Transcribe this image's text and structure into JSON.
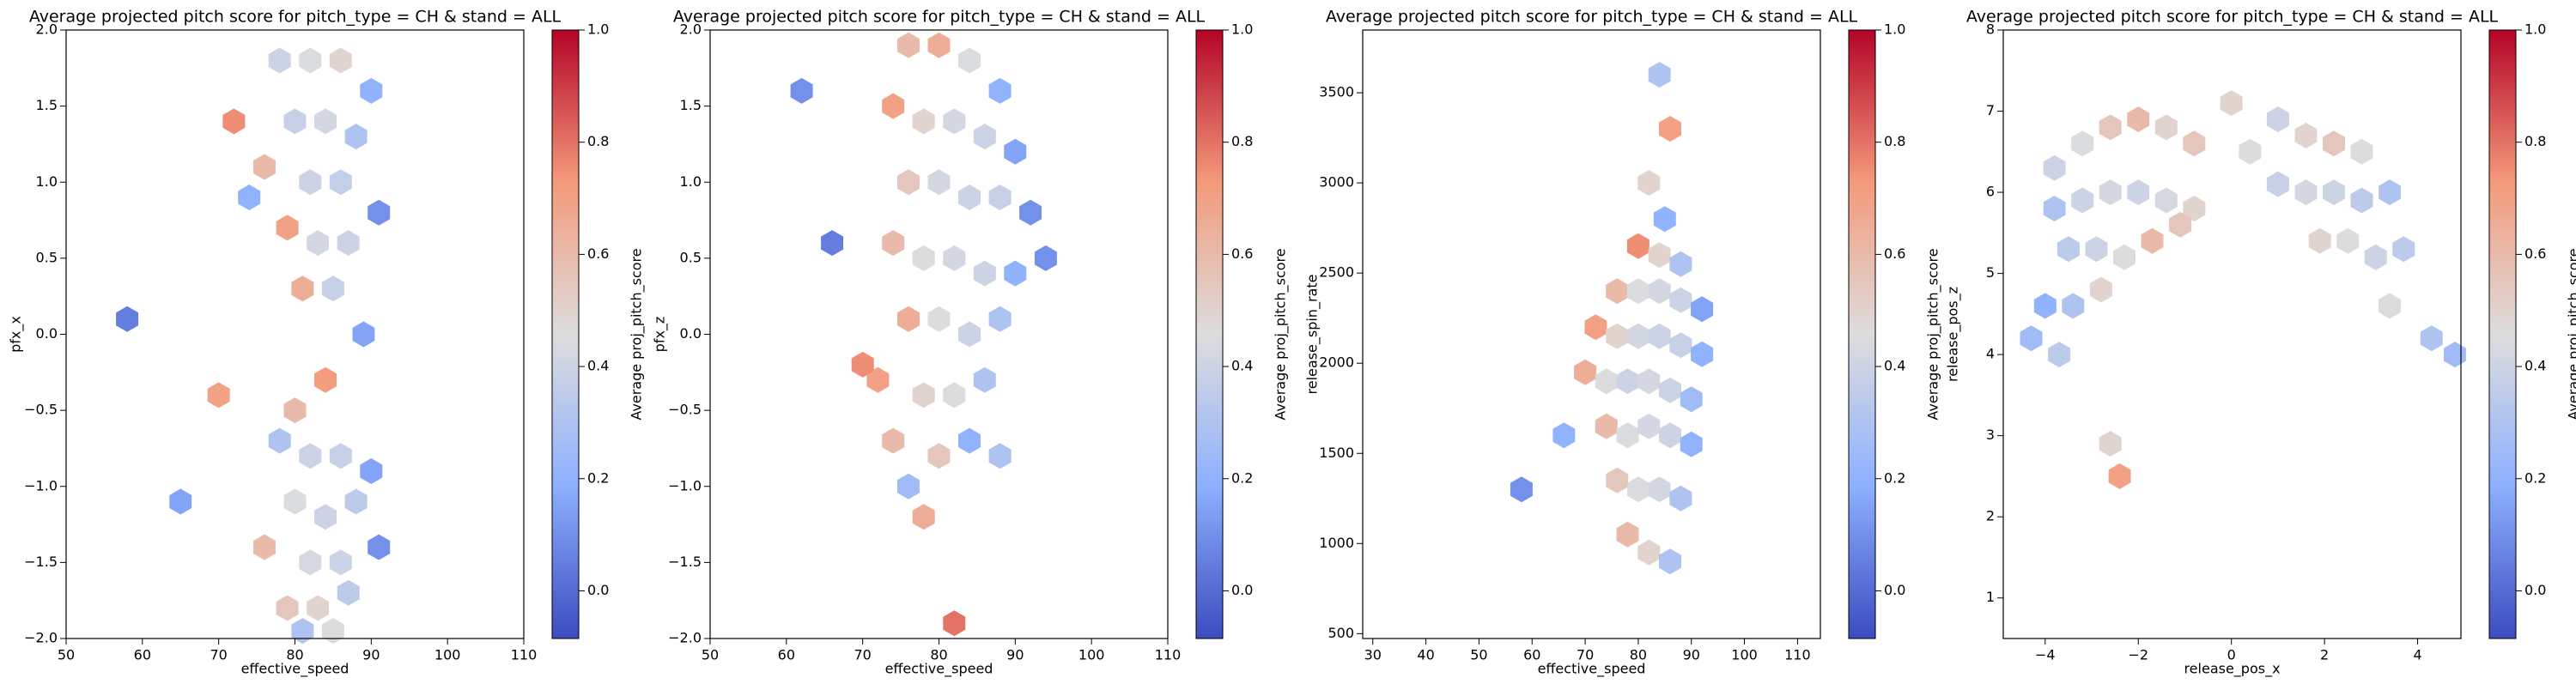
{
  "chart_data": [
    {
      "type": "hexbin",
      "title": "Average projected pitch score for pitch_type = CH & stand = ALL",
      "xlabel": "effective_speed",
      "ylabel": "pfx_x",
      "x": [
        78,
        82,
        86,
        90,
        80,
        84,
        88,
        76,
        82,
        86,
        79,
        83,
        87,
        91,
        81,
        85,
        74,
        89,
        84,
        80,
        78,
        82,
        86,
        90,
        80,
        84,
        88,
        76,
        82,
        86,
        79,
        83,
        87,
        91,
        81,
        85,
        65,
        58,
        70,
        72
      ],
      "y": [
        1.8,
        1.8,
        1.8,
        1.6,
        1.4,
        1.4,
        1.3,
        1.1,
        1.0,
        1.0,
        0.7,
        0.6,
        0.6,
        0.8,
        0.3,
        0.3,
        0.9,
        0.0,
        -0.3,
        -0.5,
        -0.7,
        -0.8,
        -0.8,
        -0.9,
        -1.1,
        -1.2,
        -1.1,
        -1.4,
        -1.5,
        -1.5,
        -1.8,
        -1.8,
        -1.7,
        -1.4,
        -1.95,
        -1.95,
        -1.1,
        0.1,
        -0.4,
        1.4
      ],
      "values": [
        0.4,
        0.45,
        0.5,
        0.2,
        0.38,
        0.42,
        0.3,
        0.6,
        0.4,
        0.37,
        0.7,
        0.42,
        0.4,
        0.1,
        0.65,
        0.38,
        0.2,
        0.15,
        0.72,
        0.6,
        0.3,
        0.4,
        0.38,
        0.15,
        0.45,
        0.4,
        0.35,
        0.6,
        0.43,
        0.4,
        0.55,
        0.5,
        0.35,
        0.1,
        0.3,
        0.45,
        0.15,
        0.05,
        0.7,
        0.75
      ],
      "xlim": [
        50,
        110
      ],
      "xticks": [
        50,
        60,
        70,
        80,
        90,
        100,
        110
      ],
      "ylim": [
        -2,
        2
      ],
      "yticks": [
        {
          "value": -2,
          "label": "−2.0"
        },
        {
          "value": -1.5,
          "label": "−1.5"
        },
        {
          "value": -1,
          "label": "−1.0"
        },
        {
          "value": -0.5,
          "label": "−0.5"
        },
        {
          "value": 0,
          "label": "0.0"
        },
        0.5,
        {
          "value": 1,
          "label": "1.0"
        },
        1.5,
        {
          "value": 2,
          "label": "2.0"
        }
      ],
      "colorbar": {
        "label": "Average proj_pitch_score",
        "colormap": "coolwarm",
        "lim": [
          -0.085,
          1
        ],
        "ticks": [
          {
            "value": 0,
            "label": "0.0"
          },
          0.2,
          0.4,
          0.6,
          0.8,
          {
            "value": 1,
            "label": "1.0"
          }
        ]
      }
    },
    {
      "type": "hexbin",
      "title": "Average projected pitch score for pitch_type = CH & stand = ALL",
      "xlabel": "effective_speed",
      "ylabel": "pfx_z",
      "x": [
        76,
        80,
        84,
        88,
        74,
        78,
        82,
        86,
        90,
        76,
        80,
        84,
        88,
        92,
        74,
        78,
        82,
        86,
        90,
        76,
        80,
        84,
        88,
        72,
        78,
        82,
        86,
        74,
        80,
        84,
        70,
        62,
        66,
        78,
        82,
        94,
        76,
        88
      ],
      "y": [
        1.9,
        1.9,
        1.8,
        1.6,
        1.5,
        1.4,
        1.4,
        1.3,
        1.2,
        1.0,
        1.0,
        0.9,
        0.9,
        0.8,
        0.6,
        0.5,
        0.5,
        0.4,
        0.4,
        0.1,
        0.1,
        0.0,
        0.1,
        -0.3,
        -0.4,
        -0.4,
        -0.3,
        -0.7,
        -0.8,
        -0.7,
        -0.2,
        1.6,
        0.6,
        -1.2,
        -1.9,
        0.5,
        -1.0,
        -0.8
      ],
      "values": [
        0.6,
        0.65,
        0.45,
        0.2,
        0.7,
        0.5,
        0.42,
        0.4,
        0.15,
        0.55,
        0.42,
        0.4,
        0.38,
        0.1,
        0.6,
        0.45,
        0.42,
        0.4,
        0.2,
        0.65,
        0.45,
        0.4,
        0.3,
        0.7,
        0.5,
        0.45,
        0.3,
        0.6,
        0.55,
        0.2,
        0.75,
        0.1,
        0.05,
        0.65,
        0.8,
        0.1,
        0.25,
        0.3
      ],
      "xlim": [
        50,
        110
      ],
      "xticks": [
        50,
        60,
        70,
        80,
        90,
        100,
        110
      ],
      "ylim": [
        -2,
        2
      ],
      "yticks": [
        {
          "value": -2,
          "label": "−2.0"
        },
        {
          "value": -1.5,
          "label": "−1.5"
        },
        {
          "value": -1,
          "label": "−1.0"
        },
        {
          "value": -0.5,
          "label": "−0.5"
        },
        {
          "value": 0,
          "label": "0.0"
        },
        0.5,
        {
          "value": 1,
          "label": "1.0"
        },
        1.5,
        {
          "value": 2,
          "label": "2.0"
        }
      ],
      "colorbar": {
        "label": "Average proj_pitch_score",
        "colormap": "coolwarm",
        "lim": [
          -0.085,
          1
        ],
        "ticks": [
          {
            "value": 0,
            "label": "0.0"
          },
          0.2,
          0.4,
          0.6,
          0.8,
          {
            "value": 1,
            "label": "1.0"
          }
        ]
      }
    },
    {
      "type": "hexbin",
      "title": "Average projected pitch score for pitch_type = CH & stand = ALL",
      "xlabel": "effective_speed",
      "ylabel": "release_spin_rate",
      "x": [
        84,
        86,
        82,
        85,
        80,
        84,
        88,
        76,
        80,
        84,
        88,
        92,
        72,
        76,
        80,
        84,
        88,
        92,
        70,
        74,
        78,
        82,
        86,
        90,
        74,
        78,
        82,
        86,
        90,
        76,
        80,
        84,
        88,
        78,
        82,
        86,
        58,
        66
      ],
      "y": [
        3600,
        3300,
        3000,
        2800,
        2650,
        2600,
        2550,
        2400,
        2400,
        2400,
        2350,
        2300,
        2200,
        2150,
        2150,
        2150,
        2100,
        2050,
        1950,
        1900,
        1900,
        1900,
        1850,
        1800,
        1650,
        1600,
        1650,
        1600,
        1550,
        1350,
        1300,
        1300,
        1250,
        1050,
        950,
        900,
        1300,
        1600
      ],
      "values": [
        0.3,
        0.7,
        0.5,
        0.2,
        0.75,
        0.5,
        0.3,
        0.6,
        0.45,
        0.42,
        0.4,
        0.15,
        0.7,
        0.5,
        0.42,
        0.4,
        0.38,
        0.2,
        0.65,
        0.45,
        0.4,
        0.42,
        0.4,
        0.25,
        0.6,
        0.45,
        0.42,
        0.4,
        0.2,
        0.55,
        0.45,
        0.42,
        0.3,
        0.6,
        0.5,
        0.3,
        0.1,
        0.2
      ],
      "xlim": [
        28.1,
        114.3
      ],
      "xticks": [
        30,
        40,
        50,
        60,
        70,
        80,
        90,
        100,
        110
      ],
      "ylim": [
        473,
        3848
      ],
      "yticks": [
        500,
        1000,
        1500,
        2000,
        2500,
        3000,
        3500
      ],
      "colorbar": {
        "label": "Average proj_pitch_score",
        "colormap": "coolwarm",
        "lim": [
          -0.085,
          1
        ],
        "ticks": [
          {
            "value": 0,
            "label": "0.0"
          },
          0.2,
          0.4,
          0.6,
          0.8,
          {
            "value": 1,
            "label": "1.0"
          }
        ]
      }
    },
    {
      "type": "hexbin",
      "title": "Average projected pitch score for pitch_type = CH & stand = ALL",
      "xlabel": "release_pos_x",
      "ylabel": "release_pos_z",
      "x": [
        -3.8,
        -3.2,
        -2.6,
        -2.0,
        -1.4,
        -0.8,
        -3.8,
        -3.2,
        -2.6,
        -2.0,
        -1.4,
        -0.8,
        -3.5,
        -2.9,
        -2.3,
        -1.7,
        -1.1,
        -4.0,
        -3.4,
        -2.8,
        -4.3,
        -3.7,
        -2.6,
        -2.4,
        0.0,
        0.4,
        1.0,
        1.6,
        2.2,
        2.8,
        1.0,
        1.6,
        2.2,
        2.8,
        3.4,
        1.9,
        2.5,
        3.1,
        3.7,
        3.4,
        4.3,
        4.8
      ],
      "y": [
        6.3,
        6.6,
        6.8,
        6.9,
        6.8,
        6.6,
        5.8,
        5.9,
        6.0,
        6.0,
        5.9,
        5.8,
        5.3,
        5.3,
        5.2,
        5.4,
        5.6,
        4.6,
        4.6,
        4.8,
        4.2,
        4.0,
        2.9,
        2.5,
        7.1,
        6.5,
        6.9,
        6.7,
        6.6,
        6.5,
        6.1,
        6.0,
        6.0,
        5.9,
        6.0,
        5.4,
        5.4,
        5.2,
        5.3,
        4.6,
        4.2,
        4.0
      ],
      "values": [
        0.4,
        0.45,
        0.55,
        0.6,
        0.5,
        0.55,
        0.3,
        0.4,
        0.42,
        0.4,
        0.43,
        0.5,
        0.35,
        0.4,
        0.45,
        0.6,
        0.55,
        0.2,
        0.3,
        0.5,
        0.25,
        0.35,
        0.5,
        0.7,
        0.5,
        0.45,
        0.4,
        0.5,
        0.55,
        0.45,
        0.38,
        0.42,
        0.4,
        0.35,
        0.3,
        0.5,
        0.45,
        0.4,
        0.35,
        0.45,
        0.3,
        0.25
      ],
      "xlim": [
        -4.9,
        4.93
      ],
      "xticks": [
        {
          "value": -4,
          "label": "−4"
        },
        {
          "value": -2,
          "label": "−2"
        },
        0,
        2,
        4
      ],
      "ylim": [
        0.5,
        8
      ],
      "yticks": [
        1,
        2,
        3,
        4,
        5,
        6,
        7,
        8
      ],
      "colorbar": {
        "label": "Average proj_pitch_score",
        "colormap": "coolwarm",
        "lim": [
          -0.085,
          1
        ],
        "ticks": [
          {
            "value": 0,
            "label": "0.0"
          },
          0.2,
          0.4,
          0.6,
          0.8,
          {
            "value": 1,
            "label": "1.0"
          }
        ]
      }
    }
  ]
}
